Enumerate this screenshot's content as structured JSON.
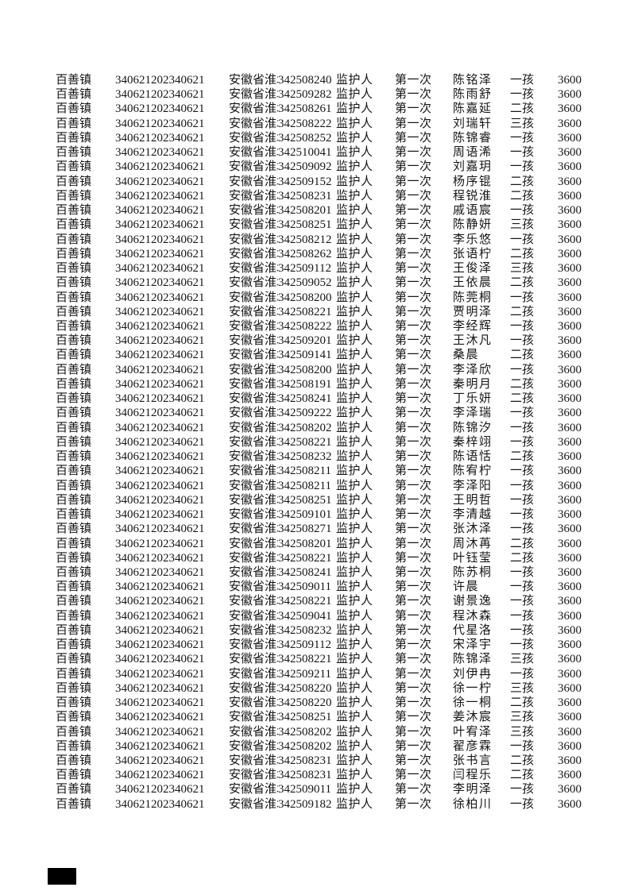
{
  "page": {
    "background_color": "#ffffff",
    "text_color": "#161616",
    "marker_color": "#000000"
  },
  "table": {
    "columns": [
      "town",
      "register_id",
      "address",
      "id_code",
      "relation",
      "sequence",
      "name",
      "child_order",
      "amount"
    ],
    "rows": [
      {
        "town": "百善镇",
        "register_id": "340621202340621",
        "address": "安徽省淮北",
        "id_code": "342508240",
        "relation": "监护人",
        "sequence": "第一次",
        "name": "陈铭泽",
        "child_order": "一孩",
        "amount": "3600"
      },
      {
        "town": "百善镇",
        "register_id": "340621202340621",
        "address": "安徽省淮北",
        "id_code": "342509282",
        "relation": "监护人",
        "sequence": "第一次",
        "name": "陈雨舒",
        "child_order": "一孩",
        "amount": "3600"
      },
      {
        "town": "百善镇",
        "register_id": "340621202340621",
        "address": "安徽省淮北",
        "id_code": "342508261",
        "relation": "监护人",
        "sequence": "第一次",
        "name": "陈嘉延",
        "child_order": "二孩",
        "amount": "3600"
      },
      {
        "town": "百善镇",
        "register_id": "340621202340621",
        "address": "安徽省淮北",
        "id_code": "342508222",
        "relation": "监护人",
        "sequence": "第一次",
        "name": "刘瑞轩",
        "child_order": "三孩",
        "amount": "3600"
      },
      {
        "town": "百善镇",
        "register_id": "340621202340621",
        "address": "安徽省淮北",
        "id_code": "342508252",
        "relation": "监护人",
        "sequence": "第一次",
        "name": "陈锦睿",
        "child_order": "一孩",
        "amount": "3600"
      },
      {
        "town": "百善镇",
        "register_id": "340621202340621",
        "address": "安徽省淮北",
        "id_code": "342510041",
        "relation": "监护人",
        "sequence": "第一次",
        "name": "周语浠",
        "child_order": "一孩",
        "amount": "3600"
      },
      {
        "town": "百善镇",
        "register_id": "340621202340621",
        "address": "安徽省淮北",
        "id_code": "342509092",
        "relation": "监护人",
        "sequence": "第一次",
        "name": "刘嘉玥",
        "child_order": "一孩",
        "amount": "3600"
      },
      {
        "town": "百善镇",
        "register_id": "340621202340621",
        "address": "安徽省淮北",
        "id_code": "342509152",
        "relation": "监护人",
        "sequence": "第一次",
        "name": "杨序锟",
        "child_order": "二孩",
        "amount": "3600"
      },
      {
        "town": "百善镇",
        "register_id": "340621202340621",
        "address": "安徽省淮北",
        "id_code": "342508231",
        "relation": "监护人",
        "sequence": "第一次",
        "name": "程锐淮",
        "child_order": "二孩",
        "amount": "3600"
      },
      {
        "town": "百善镇",
        "register_id": "340621202340621",
        "address": "安徽省淮北",
        "id_code": "342508201",
        "relation": "监护人",
        "sequence": "第一次",
        "name": "戚语宸",
        "child_order": "一孩",
        "amount": "3600"
      },
      {
        "town": "百善镇",
        "register_id": "340621202340621",
        "address": "安徽省淮北",
        "id_code": "342508251",
        "relation": "监护人",
        "sequence": "第一次",
        "name": "陈静妍",
        "child_order": "三孩",
        "amount": "3600"
      },
      {
        "town": "百善镇",
        "register_id": "340621202340621",
        "address": "安徽省淮北",
        "id_code": "342508212",
        "relation": "监护人",
        "sequence": "第一次",
        "name": "李乐悠",
        "child_order": "一孩",
        "amount": "3600"
      },
      {
        "town": "百善镇",
        "register_id": "340621202340621",
        "address": "安徽省淮北",
        "id_code": "342508262",
        "relation": "监护人",
        "sequence": "第一次",
        "name": "张语柠",
        "child_order": "二孩",
        "amount": "3600"
      },
      {
        "town": "百善镇",
        "register_id": "340621202340621",
        "address": "安徽省淮北",
        "id_code": "342509112",
        "relation": "监护人",
        "sequence": "第一次",
        "name": "王俊泽",
        "child_order": "三孩",
        "amount": "3600"
      },
      {
        "town": "百善镇",
        "register_id": "340621202340621",
        "address": "安徽省淮北",
        "id_code": "342509052",
        "relation": "监护人",
        "sequence": "第一次",
        "name": "王依晨",
        "child_order": "二孩",
        "amount": "3600"
      },
      {
        "town": "百善镇",
        "register_id": "340621202340621",
        "address": "安徽省淮北",
        "id_code": "342508200",
        "relation": "监护人",
        "sequence": "第一次",
        "name": "陈莞桐",
        "child_order": "一孩",
        "amount": "3600"
      },
      {
        "town": "百善镇",
        "register_id": "340621202340621",
        "address": "安徽省淮北",
        "id_code": "342508221",
        "relation": "监护人",
        "sequence": "第一次",
        "name": "贾明泽",
        "child_order": "二孩",
        "amount": "3600"
      },
      {
        "town": "百善镇",
        "register_id": "340621202340621",
        "address": "安徽省淮北",
        "id_code": "342508222",
        "relation": "监护人",
        "sequence": "第一次",
        "name": "李经辉",
        "child_order": "一孩",
        "amount": "3600"
      },
      {
        "town": "百善镇",
        "register_id": "340621202340621",
        "address": "安徽省淮北",
        "id_code": "342509201",
        "relation": "监护人",
        "sequence": "第一次",
        "name": "王沐凡",
        "child_order": "一孩",
        "amount": "3600"
      },
      {
        "town": "百善镇",
        "register_id": "340621202340621",
        "address": "安徽省淮北",
        "id_code": "342509141",
        "relation": "监护人",
        "sequence": "第一次",
        "name": "桑晨",
        "child_order": "二孩",
        "amount": "3600"
      },
      {
        "town": "百善镇",
        "register_id": "340621202340621",
        "address": "安徽省淮北",
        "id_code": "342508200",
        "relation": "监护人",
        "sequence": "第一次",
        "name": "李泽欣",
        "child_order": "一孩",
        "amount": "3600"
      },
      {
        "town": "百善镇",
        "register_id": "340621202340621",
        "address": "安徽省淮北",
        "id_code": "342508191",
        "relation": "监护人",
        "sequence": "第一次",
        "name": "秦明月",
        "child_order": "二孩",
        "amount": "3600"
      },
      {
        "town": "百善镇",
        "register_id": "340621202340621",
        "address": "安徽省淮北",
        "id_code": "342508241",
        "relation": "监护人",
        "sequence": "第一次",
        "name": "丁乐妍",
        "child_order": "二孩",
        "amount": "3600"
      },
      {
        "town": "百善镇",
        "register_id": "340621202340621",
        "address": "安徽省淮北",
        "id_code": "342509222",
        "relation": "监护人",
        "sequence": "第一次",
        "name": "李泽瑞",
        "child_order": "一孩",
        "amount": "3600"
      },
      {
        "town": "百善镇",
        "register_id": "340621202340621",
        "address": "安徽省淮北",
        "id_code": "342508202",
        "relation": "监护人",
        "sequence": "第一次",
        "name": "陈锦汐",
        "child_order": "一孩",
        "amount": "3600"
      },
      {
        "town": "百善镇",
        "register_id": "340621202340621",
        "address": "安徽省淮北",
        "id_code": "342508221",
        "relation": "监护人",
        "sequence": "第一次",
        "name": "秦梓翊",
        "child_order": "一孩",
        "amount": "3600"
      },
      {
        "town": "百善镇",
        "register_id": "340621202340621",
        "address": "安徽省淮北",
        "id_code": "342508232",
        "relation": "监护人",
        "sequence": "第一次",
        "name": "陈语恬",
        "child_order": "二孩",
        "amount": "3600"
      },
      {
        "town": "百善镇",
        "register_id": "340621202340621",
        "address": "安徽省淮北",
        "id_code": "342508211",
        "relation": "监护人",
        "sequence": "第一次",
        "name": "陈宥柠",
        "child_order": "一孩",
        "amount": "3600"
      },
      {
        "town": "百善镇",
        "register_id": "340621202340621",
        "address": "安徽省淮北",
        "id_code": "342508211",
        "relation": "监护人",
        "sequence": "第一次",
        "name": "李泽阳",
        "child_order": "一孩",
        "amount": "3600"
      },
      {
        "town": "百善镇",
        "register_id": "340621202340621",
        "address": "安徽省淮北",
        "id_code": "342508251",
        "relation": "监护人",
        "sequence": "第一次",
        "name": "王明哲",
        "child_order": "一孩",
        "amount": "3600"
      },
      {
        "town": "百善镇",
        "register_id": "340621202340621",
        "address": "安徽省淮北",
        "id_code": "342509101",
        "relation": "监护人",
        "sequence": "第一次",
        "name": "李清越",
        "child_order": "一孩",
        "amount": "3600"
      },
      {
        "town": "百善镇",
        "register_id": "340621202340621",
        "address": "安徽省淮北",
        "id_code": "342508271",
        "relation": "监护人",
        "sequence": "第一次",
        "name": "张沐泽",
        "child_order": "一孩",
        "amount": "3600"
      },
      {
        "town": "百善镇",
        "register_id": "340621202340621",
        "address": "安徽省淮北",
        "id_code": "342508201",
        "relation": "监护人",
        "sequence": "第一次",
        "name": "周沐苒",
        "child_order": "二孩",
        "amount": "3600"
      },
      {
        "town": "百善镇",
        "register_id": "340621202340621",
        "address": "安徽省淮北",
        "id_code": "342508221",
        "relation": "监护人",
        "sequence": "第一次",
        "name": "叶钰莹",
        "child_order": "二孩",
        "amount": "3600"
      },
      {
        "town": "百善镇",
        "register_id": "340621202340621",
        "address": "安徽省淮北",
        "id_code": "342508241",
        "relation": "监护人",
        "sequence": "第一次",
        "name": "陈苏桐",
        "child_order": "一孩",
        "amount": "3600"
      },
      {
        "town": "百善镇",
        "register_id": "340621202340621",
        "address": "安徽省淮北",
        "id_code": "342509011",
        "relation": "监护人",
        "sequence": "第一次",
        "name": "许晨",
        "child_order": "一孩",
        "amount": "3600"
      },
      {
        "town": "百善镇",
        "register_id": "340621202340621",
        "address": "安徽省淮北",
        "id_code": "342508221",
        "relation": "监护人",
        "sequence": "第一次",
        "name": "谢景逸",
        "child_order": "一孩",
        "amount": "3600"
      },
      {
        "town": "百善镇",
        "register_id": "340621202340621",
        "address": "安徽省淮北",
        "id_code": "342509041",
        "relation": "监护人",
        "sequence": "第一次",
        "name": "程沐森",
        "child_order": "一孩",
        "amount": "3600"
      },
      {
        "town": "百善镇",
        "register_id": "340621202340621",
        "address": "安徽省淮北",
        "id_code": "342508232",
        "relation": "监护人",
        "sequence": "第一次",
        "name": "代星洛",
        "child_order": "一孩",
        "amount": "3600"
      },
      {
        "town": "百善镇",
        "register_id": "340621202340621",
        "address": "安徽省淮北",
        "id_code": "342509112",
        "relation": "监护人",
        "sequence": "第一次",
        "name": "宋泽宇",
        "child_order": "一孩",
        "amount": "3600"
      },
      {
        "town": "百善镇",
        "register_id": "340621202340621",
        "address": "安徽省淮北",
        "id_code": "342508221",
        "relation": "监护人",
        "sequence": "第一次",
        "name": "陈锦泽",
        "child_order": "三孩",
        "amount": "3600"
      },
      {
        "town": "百善镇",
        "register_id": "340621202340621",
        "address": "安徽省淮北",
        "id_code": "342509211",
        "relation": "监护人",
        "sequence": "第一次",
        "name": "刘伊冉",
        "child_order": "一孩",
        "amount": "3600"
      },
      {
        "town": "百善镇",
        "register_id": "340621202340621",
        "address": "安徽省淮北",
        "id_code": "342508220",
        "relation": "监护人",
        "sequence": "第一次",
        "name": "徐一柠",
        "child_order": "三孩",
        "amount": "3600"
      },
      {
        "town": "百善镇",
        "register_id": "340621202340621",
        "address": "安徽省淮北",
        "id_code": "342508220",
        "relation": "监护人",
        "sequence": "第一次",
        "name": "徐一桐",
        "child_order": "二孩",
        "amount": "3600"
      },
      {
        "town": "百善镇",
        "register_id": "340621202340621",
        "address": "安徽省淮北",
        "id_code": "342508251",
        "relation": "监护人",
        "sequence": "第一次",
        "name": "姜沐宸",
        "child_order": "三孩",
        "amount": "3600"
      },
      {
        "town": "百善镇",
        "register_id": "340621202340621",
        "address": "安徽省淮北",
        "id_code": "342508202",
        "relation": "监护人",
        "sequence": "第一次",
        "name": "叶宥泽",
        "child_order": "三孩",
        "amount": "3600"
      },
      {
        "town": "百善镇",
        "register_id": "340621202340621",
        "address": "安徽省淮北",
        "id_code": "342508202",
        "relation": "监护人",
        "sequence": "第一次",
        "name": "翟彦霖",
        "child_order": "一孩",
        "amount": "3600"
      },
      {
        "town": "百善镇",
        "register_id": "340621202340621",
        "address": "安徽省淮北",
        "id_code": "342508231",
        "relation": "监护人",
        "sequence": "第一次",
        "name": "张书言",
        "child_order": "二孩",
        "amount": "3600"
      },
      {
        "town": "百善镇",
        "register_id": "340621202340621",
        "address": "安徽省淮北",
        "id_code": "342508231",
        "relation": "监护人",
        "sequence": "第一次",
        "name": "闫程乐",
        "child_order": "二孩",
        "amount": "3600"
      },
      {
        "town": "百善镇",
        "register_id": "340621202340621",
        "address": "安徽省淮北",
        "id_code": "342509011",
        "relation": "监护人",
        "sequence": "第一次",
        "name": "李明泽",
        "child_order": "一孩",
        "amount": "3600"
      },
      {
        "town": "百善镇",
        "register_id": "340621202340621",
        "address": "安徽省淮北",
        "id_code": "342509182",
        "relation": "监护人",
        "sequence": "第一次",
        "name": "徐柏川",
        "child_order": "一孩",
        "amount": "3600"
      }
    ]
  }
}
